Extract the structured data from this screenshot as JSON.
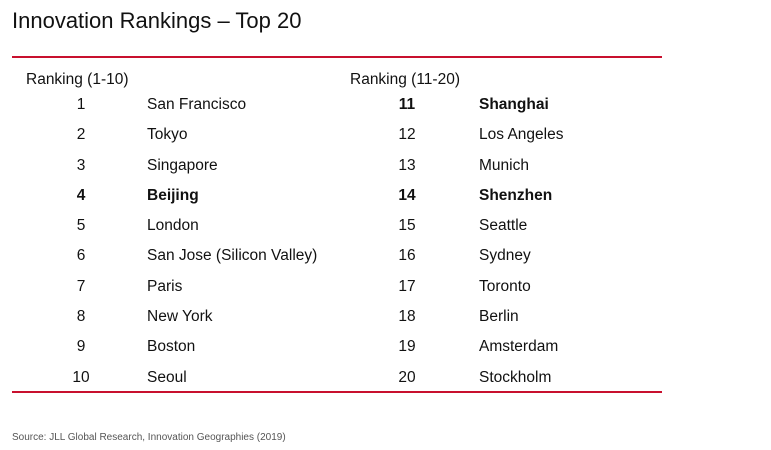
{
  "title": "Innovation Rankings – Top 20",
  "headers": {
    "left": "Ranking (1-10)",
    "right": "Ranking (11-20)"
  },
  "rows": [
    {
      "rank_l": "1",
      "city_l": "San Francisco",
      "bold_l": false,
      "rank_r": "11",
      "city_r": "Shanghai",
      "bold_r": true
    },
    {
      "rank_l": "2",
      "city_l": "Tokyo",
      "bold_l": false,
      "rank_r": "12",
      "city_r": "Los Angeles",
      "bold_r": false
    },
    {
      "rank_l": "3",
      "city_l": "Singapore",
      "bold_l": false,
      "rank_r": "13",
      "city_r": "Munich",
      "bold_r": false
    },
    {
      "rank_l": "4",
      "city_l": "Beijing",
      "bold_l": true,
      "rank_r": "14",
      "city_r": "Shenzhen",
      "bold_r": true
    },
    {
      "rank_l": "5",
      "city_l": "London",
      "bold_l": false,
      "rank_r": "15",
      "city_r": "Seattle",
      "bold_r": false
    },
    {
      "rank_l": "6",
      "city_l": "San Jose (Silicon Valley)",
      "bold_l": false,
      "rank_r": "16",
      "city_r": "Sydney",
      "bold_r": false
    },
    {
      "rank_l": "7",
      "city_l": "Paris",
      "bold_l": false,
      "rank_r": "17",
      "city_r": "Toronto",
      "bold_r": false
    },
    {
      "rank_l": "8",
      "city_l": "New York",
      "bold_l": false,
      "rank_r": "18",
      "city_r": "Berlin",
      "bold_r": false
    },
    {
      "rank_l": "9",
      "city_l": "Boston",
      "bold_l": false,
      "rank_r": "19",
      "city_r": "Amsterdam",
      "bold_r": false
    },
    {
      "rank_l": "10",
      "city_l": "Seoul",
      "bold_l": false,
      "rank_r": "20",
      "city_r": "Stockholm",
      "bold_r": false
    }
  ],
  "source": "Source: JLL Global Research, Innovation Geographies (2019)",
  "colors": {
    "rule": "#c8102e",
    "text": "#111111"
  }
}
